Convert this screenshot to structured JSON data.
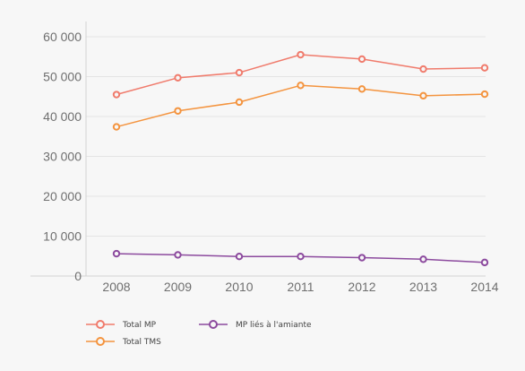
{
  "chart_data": {
    "type": "line",
    "title": "",
    "xlabel": "",
    "ylabel": "",
    "x": [
      "2008",
      "2009",
      "2010",
      "2011",
      "2012",
      "2013",
      "2014"
    ],
    "ylim": [
      0,
      60000
    ],
    "y_ticks": [
      0,
      10000,
      20000,
      30000,
      40000,
      50000,
      60000
    ],
    "y_tick_labels": [
      "0",
      "10 000",
      "20 000",
      "30 000",
      "40 000",
      "50 000",
      "60 000"
    ],
    "grid": "horizontal",
    "legend_position": "bottom-left",
    "series": [
      {
        "name": "Total MP",
        "color": "#f07b6c",
        "values": [
          45500,
          49700,
          51000,
          55500,
          54400,
          51900,
          52200
        ]
      },
      {
        "name": "Total TMS",
        "color": "#f4943f",
        "values": [
          37400,
          41400,
          43600,
          47800,
          46900,
          45200,
          45600
        ]
      },
      {
        "name": "MP liés à l'amiante",
        "color": "#8c4a9e",
        "values": [
          5600,
          5300,
          4900,
          4900,
          4600,
          4200,
          3400
        ]
      }
    ]
  }
}
